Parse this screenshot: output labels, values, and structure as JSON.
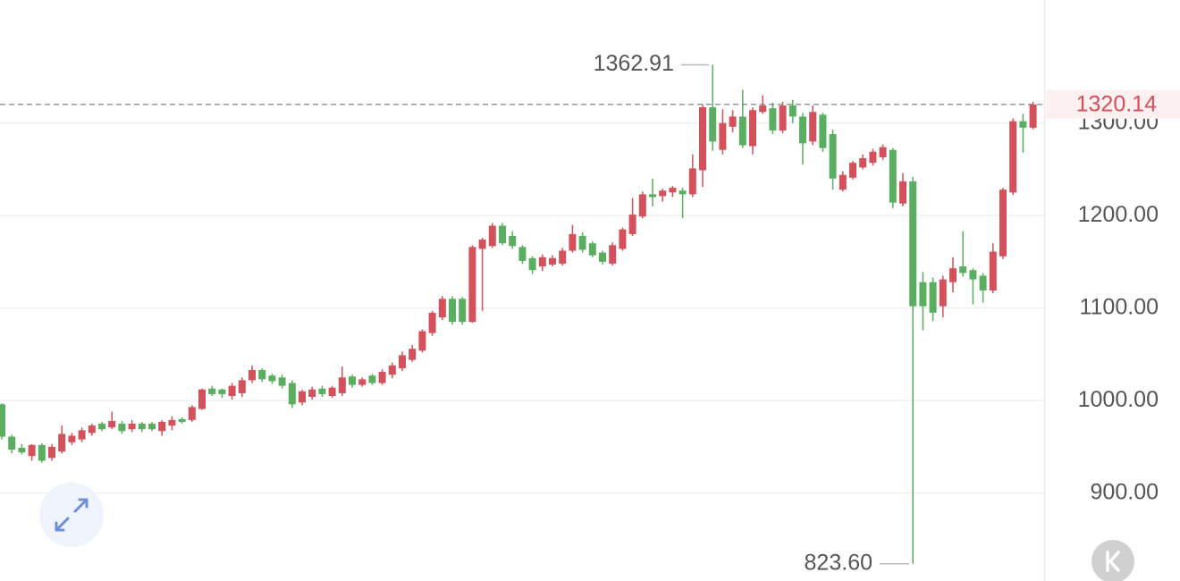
{
  "chart_data": {
    "type": "candlestick",
    "open": [
      996,
      961,
      949,
      940,
      952,
      938,
      945,
      955,
      958,
      965,
      975,
      971,
      975,
      969,
      975,
      975,
      967,
      973,
      980,
      979,
      991,
      1013,
      1012,
      1005,
      1008,
      1022,
      1033,
      1027,
      1025,
      1019,
      998,
      1004,
      1013,
      1005,
      1008,
      1026,
      1017,
      1027,
      1019,
      1028,
      1035,
      1044,
      1054,
      1073,
      1090,
      1110,
      1110,
      1085,
      1164,
      1167,
      1189,
      1178,
      1166,
      1154,
      1145,
      1147,
      1148,
      1162,
      1178,
      1170,
      1160,
      1148,
      1164,
      1180,
      1199,
      1223,
      1221,
      1225,
      1227,
      1223,
      1249,
      1317,
      1271,
      1296,
      1307,
      1275,
      1312,
      1316,
      1292,
      1319,
      1307,
      1280,
      1309,
      1288,
      1228,
      1241,
      1252,
      1257,
      1263,
      1271,
      1213,
      1237,
      1128,
      1128,
      1102,
      1128,
      1145,
      1141,
      1135,
      1119,
      1156,
      1225,
      1302,
      1295
    ],
    "high": [
      997,
      963,
      953,
      953,
      954,
      953,
      973,
      965,
      971,
      975,
      977,
      988,
      978,
      979,
      977,
      977,
      979,
      983,
      982,
      995,
      1013,
      1016,
      1013,
      1019,
      1025,
      1038,
      1035,
      1029,
      1028,
      1022,
      1012,
      1015,
      1016,
      1016,
      1037,
      1028,
      1025,
      1029,
      1034,
      1041,
      1053,
      1060,
      1077,
      1097,
      1113,
      1113,
      1112,
      1168,
      1176,
      1192,
      1192,
      1183,
      1168,
      1156,
      1158,
      1157,
      1165,
      1190,
      1182,
      1172,
      1162,
      1171,
      1187,
      1219,
      1226,
      1240,
      1229,
      1232,
      1230,
      1266,
      1320,
      1362.91,
      1315,
      1314,
      1336,
      1317,
      1330,
      1322,
      1323,
      1325,
      1311,
      1319,
      1311,
      1293,
      1248,
      1259,
      1266,
      1272,
      1277,
      1273,
      1246,
      1242,
      1139,
      1133,
      1135,
      1155,
      1183,
      1143,
      1138,
      1170,
      1230,
      1305,
      1310,
      1323
    ],
    "low": [
      958,
      943,
      942,
      935,
      933,
      935,
      943,
      952,
      955,
      962,
      967,
      969,
      964,
      966,
      966,
      967,
      962,
      968,
      975,
      977,
      990,
      1005,
      1003,
      1001,
      1004,
      1019,
      1020,
      1018,
      1013,
      992,
      995,
      1001,
      1004,
      1003,
      1005,
      1014,
      1015,
      1017,
      1017,
      1024,
      1032,
      1042,
      1052,
      1070,
      1087,
      1082,
      1082,
      1084,
      1097,
      1165,
      1168,
      1164,
      1148,
      1137,
      1140,
      1145,
      1146,
      1160,
      1160,
      1155,
      1147,
      1146,
      1162,
      1178,
      1197,
      1210,
      1215,
      1220,
      1197,
      1220,
      1231,
      1270,
      1266,
      1290,
      1273,
      1266,
      1310,
      1288,
      1289,
      1300,
      1255,
      1276,
      1269,
      1228,
      1226,
      1239,
      1250,
      1254,
      1260,
      1208,
      1210,
      823.6,
      1076,
      1086,
      1090,
      1117,
      1134,
      1104,
      1106,
      1116,
      1153,
      1222,
      1268,
      1293
    ],
    "close": [
      961,
      947,
      944,
      952,
      935,
      950,
      964,
      962,
      968,
      973,
      969,
      978,
      967,
      975,
      969,
      969,
      977,
      979,
      977,
      993,
      1012,
      1007,
      1007,
      1016,
      1022,
      1033,
      1023,
      1021,
      1016,
      996,
      1010,
      1012,
      1007,
      1014,
      1025,
      1017,
      1023,
      1019,
      1031,
      1038,
      1049,
      1056,
      1075,
      1095,
      1110,
      1085,
      1085,
      1166,
      1174,
      1189,
      1170,
      1167,
      1151,
      1141,
      1155,
      1154,
      1162,
      1180,
      1163,
      1157,
      1150,
      1168,
      1185,
      1201,
      1223,
      1220,
      1227,
      1230,
      1223,
      1251,
      1317,
      1280,
      1300,
      1307,
      1276,
      1314,
      1319,
      1292,
      1319,
      1307,
      1278,
      1312,
      1273,
      1240,
      1244,
      1257,
      1262,
      1269,
      1274,
      1214,
      1237,
      1102,
      1102,
      1095,
      1131,
      1143,
      1138,
      1131,
      1119,
      1161,
      1228,
      1302,
      1295,
      1320.14
    ],
    "up_color": "#d4505a",
    "down_color": "#5aae60",
    "ylim": [
      805,
      1433
    ],
    "yticks": [
      {
        "value": 900,
        "label": "900.00"
      },
      {
        "value": 1000,
        "label": "1000.00"
      },
      {
        "value": 1100,
        "label": "1100.00"
      },
      {
        "value": 1200,
        "label": "1200.00"
      },
      {
        "value": 1300,
        "label": "1300.00"
      }
    ],
    "grid": true,
    "max_label": 1362.91,
    "min_label": {
      "value": 823.6,
      "label": "823.60"
    },
    "last_price": 1320.14
  }
}
